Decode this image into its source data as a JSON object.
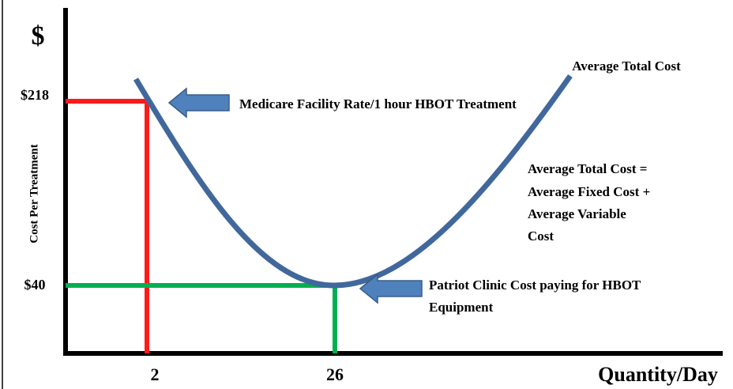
{
  "y_axis": {
    "symbol": "$",
    "label": "Cost Per Treatment",
    "ticks": [
      "$218",
      "$40"
    ]
  },
  "x_axis": {
    "label": "Quantity/Day",
    "ticks": [
      "2",
      "26"
    ]
  },
  "curve_label": "Average Total Cost",
  "callouts": {
    "medicare": "Medicare Facility Rate/1 hour HBOT Treatment",
    "patriot": [
      "Patriot Clinic Cost paying for HBOT",
      "Equipment"
    ]
  },
  "formula": [
    "Average Total Cost =",
    "Average Fixed Cost +",
    "Average Variable",
    "Cost"
  ]
}
